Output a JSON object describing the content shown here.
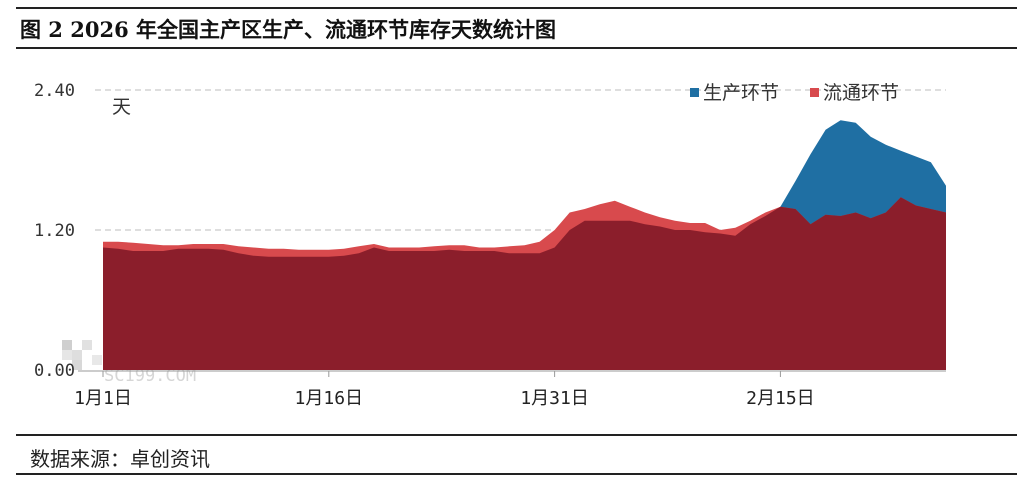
{
  "header": {
    "title": "图 2 2026 年全国主产区生产、流通环节库存天数统计图"
  },
  "footer": {
    "source": "数据来源：卓创资讯"
  },
  "chart_data": {
    "type": "area",
    "stacked": false,
    "y_unit_label": "天",
    "ylim": [
      0,
      2.4
    ],
    "yticks": [
      "0.00",
      "1.20",
      "2.40"
    ],
    "grid": "dashed at y ticks",
    "legend_position": "top-right",
    "x_tick_labels": [
      "1月1日",
      "1月16日",
      "1月31日",
      "2月15日"
    ],
    "x_tick_days": [
      1,
      16,
      31,
      46
    ],
    "colors": {
      "生产环节": "#1f6fa3",
      "流通环节": "#d84a4d",
      "overlap": "#8b1e2b"
    },
    "series": [
      {
        "name": "生产环节",
        "x": [
          1,
          2,
          3,
          4,
          5,
          6,
          7,
          8,
          9,
          10,
          11,
          12,
          13,
          14,
          15,
          16,
          17,
          18,
          19,
          20,
          21,
          22,
          23,
          24,
          25,
          26,
          27,
          28,
          29,
          30,
          31,
          32,
          33,
          34,
          35,
          36,
          37,
          38,
          39,
          40,
          41,
          42,
          43,
          44,
          45,
          46,
          47,
          48,
          49,
          50,
          51,
          52,
          53,
          54,
          55,
          56,
          57
        ],
        "values": [
          1.05,
          1.04,
          1.02,
          1.02,
          1.02,
          1.04,
          1.04,
          1.04,
          1.03,
          1.0,
          0.98,
          0.97,
          0.97,
          0.97,
          0.97,
          0.97,
          0.98,
          1.0,
          1.05,
          1.02,
          1.02,
          1.02,
          1.02,
          1.03,
          1.02,
          1.02,
          1.02,
          1.0,
          1.0,
          1.0,
          1.05,
          1.2,
          1.28,
          1.28,
          1.28,
          1.28,
          1.25,
          1.23,
          1.2,
          1.2,
          1.18,
          1.17,
          1.15,
          1.25,
          1.32,
          1.4,
          1.62,
          1.85,
          2.06,
          2.14,
          2.12,
          2.0,
          1.93,
          1.88,
          1.83,
          1.78,
          1.58
        ]
      },
      {
        "name": "流通环节",
        "x": [
          1,
          2,
          3,
          4,
          5,
          6,
          7,
          8,
          9,
          10,
          11,
          12,
          13,
          14,
          15,
          16,
          17,
          18,
          19,
          20,
          21,
          22,
          23,
          24,
          25,
          26,
          27,
          28,
          29,
          30,
          31,
          32,
          33,
          34,
          35,
          36,
          37,
          38,
          39,
          40,
          41,
          42,
          43,
          44,
          45,
          46,
          47,
          48,
          49,
          50,
          51,
          52,
          53,
          54,
          55,
          56,
          57
        ],
        "values": [
          1.1,
          1.1,
          1.09,
          1.08,
          1.07,
          1.07,
          1.08,
          1.08,
          1.08,
          1.06,
          1.05,
          1.04,
          1.04,
          1.03,
          1.03,
          1.03,
          1.04,
          1.06,
          1.08,
          1.05,
          1.05,
          1.05,
          1.06,
          1.07,
          1.07,
          1.05,
          1.05,
          1.06,
          1.07,
          1.1,
          1.2,
          1.35,
          1.38,
          1.42,
          1.45,
          1.4,
          1.35,
          1.31,
          1.28,
          1.26,
          1.26,
          1.2,
          1.22,
          1.28,
          1.35,
          1.4,
          1.38,
          1.25,
          1.33,
          1.32,
          1.35,
          1.3,
          1.35,
          1.48,
          1.41,
          1.38,
          1.35
        ]
      }
    ]
  }
}
